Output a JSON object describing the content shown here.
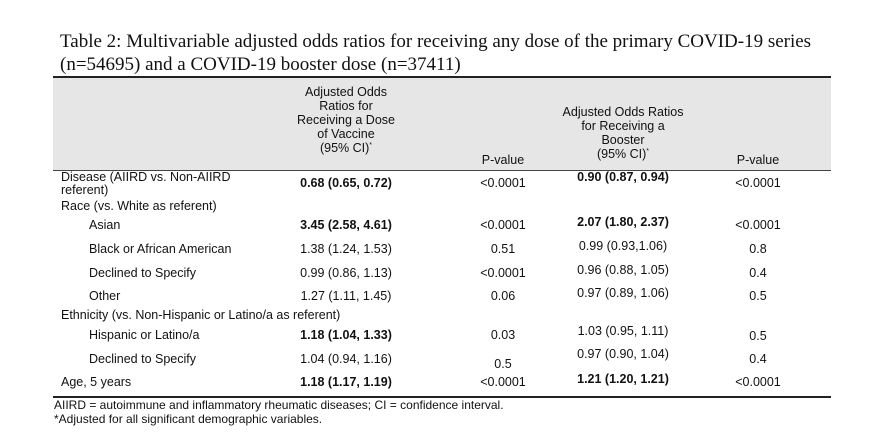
{
  "title": "Table 2: Multivariable adjusted odds ratios for receiving any dose of the primary COVID-19 series (n=54695) and a COVID-19 booster dose (n=37411)",
  "headers": {
    "col1_lines": [
      "Adjusted Odds",
      "Ratios for",
      "Receiving a Dose",
      "of Vaccine",
      "(95% CI)"
    ],
    "col1_sup": "*",
    "col2": "P-value",
    "col3_lines": [
      "Adjusted Odds Ratios",
      "for Receiving a",
      "Booster",
      "(95% CI)"
    ],
    "col3_sup": "*",
    "col4": "P-value"
  },
  "rows": [
    {
      "label": [
        "Disease (AIIRD vs. Non-AIIRD",
        "referent)"
      ],
      "or1": "0.68 (0.65, 0.72)",
      "or1_bold": true,
      "p1": "<0.0001",
      "or2": "0.90 (0.87, 0.94)",
      "or2_bold": true,
      "p2": "<0.0001"
    },
    {
      "label": [
        "Race (vs. White as referent)"
      ]
    },
    {
      "label": [
        "Asian"
      ],
      "indent": true,
      "or1": "3.45 (2.58, 4.61)",
      "or1_bold": true,
      "p1": "<0.0001",
      "or2": "2.07 (1.80, 2.37)",
      "or2_bold": true,
      "p2": "<0.0001"
    },
    {
      "label": [
        "Black or African American"
      ],
      "indent": true,
      "or1": "1.38 (1.24, 1.53)",
      "p1": "0.51",
      "or2": "0.99 (0.93,1.06)",
      "p2": "0.8"
    },
    {
      "label": [
        "Declined to Specify"
      ],
      "indent": true,
      "or1": "0.99 (0.86, 1.13)",
      "p1": "<0.0001",
      "or2": "0.96 (0.88, 1.05)",
      "p2": "0.4"
    },
    {
      "label": [
        "Other"
      ],
      "indent": true,
      "or1": "1.27 (1.11, 1.45)",
      "p1": "0.06",
      "or2": "0.97 (0.89, 1.06)",
      "p2": "0.5"
    },
    {
      "label": [
        "Ethnicity (vs. Non-Hispanic or Latino/a as referent)"
      ]
    },
    {
      "label": [
        "Hispanic or Latino/a"
      ],
      "indent": true,
      "or1": "1.18 (1.04, 1.33)",
      "or1_bold": true,
      "p1": "0.03",
      "or2": "1.03 (0.95, 1.11)",
      "p2": "0.5"
    },
    {
      "label": [
        "Declined to Specify"
      ],
      "indent": true,
      "or1": "1.04 (0.94, 1.16)",
      "p1": "0.5",
      "or2": "0.97 (0.90, 1.04)",
      "p2": "0.4"
    },
    {
      "label": [
        "Age, 5 years"
      ],
      "or1": "1.18 (1.17, 1.19)",
      "or1_bold": true,
      "p1": "<0.0001",
      "or2": "1.21 (1.20, 1.21)",
      "or2_bold": true,
      "p2": "<0.0001"
    }
  ],
  "footnotes": [
    "AIIRD = autoimmune and inflammatory rheumatic diseases; CI = confidence interval.",
    "*Adjusted for all significant demographic variables."
  ]
}
